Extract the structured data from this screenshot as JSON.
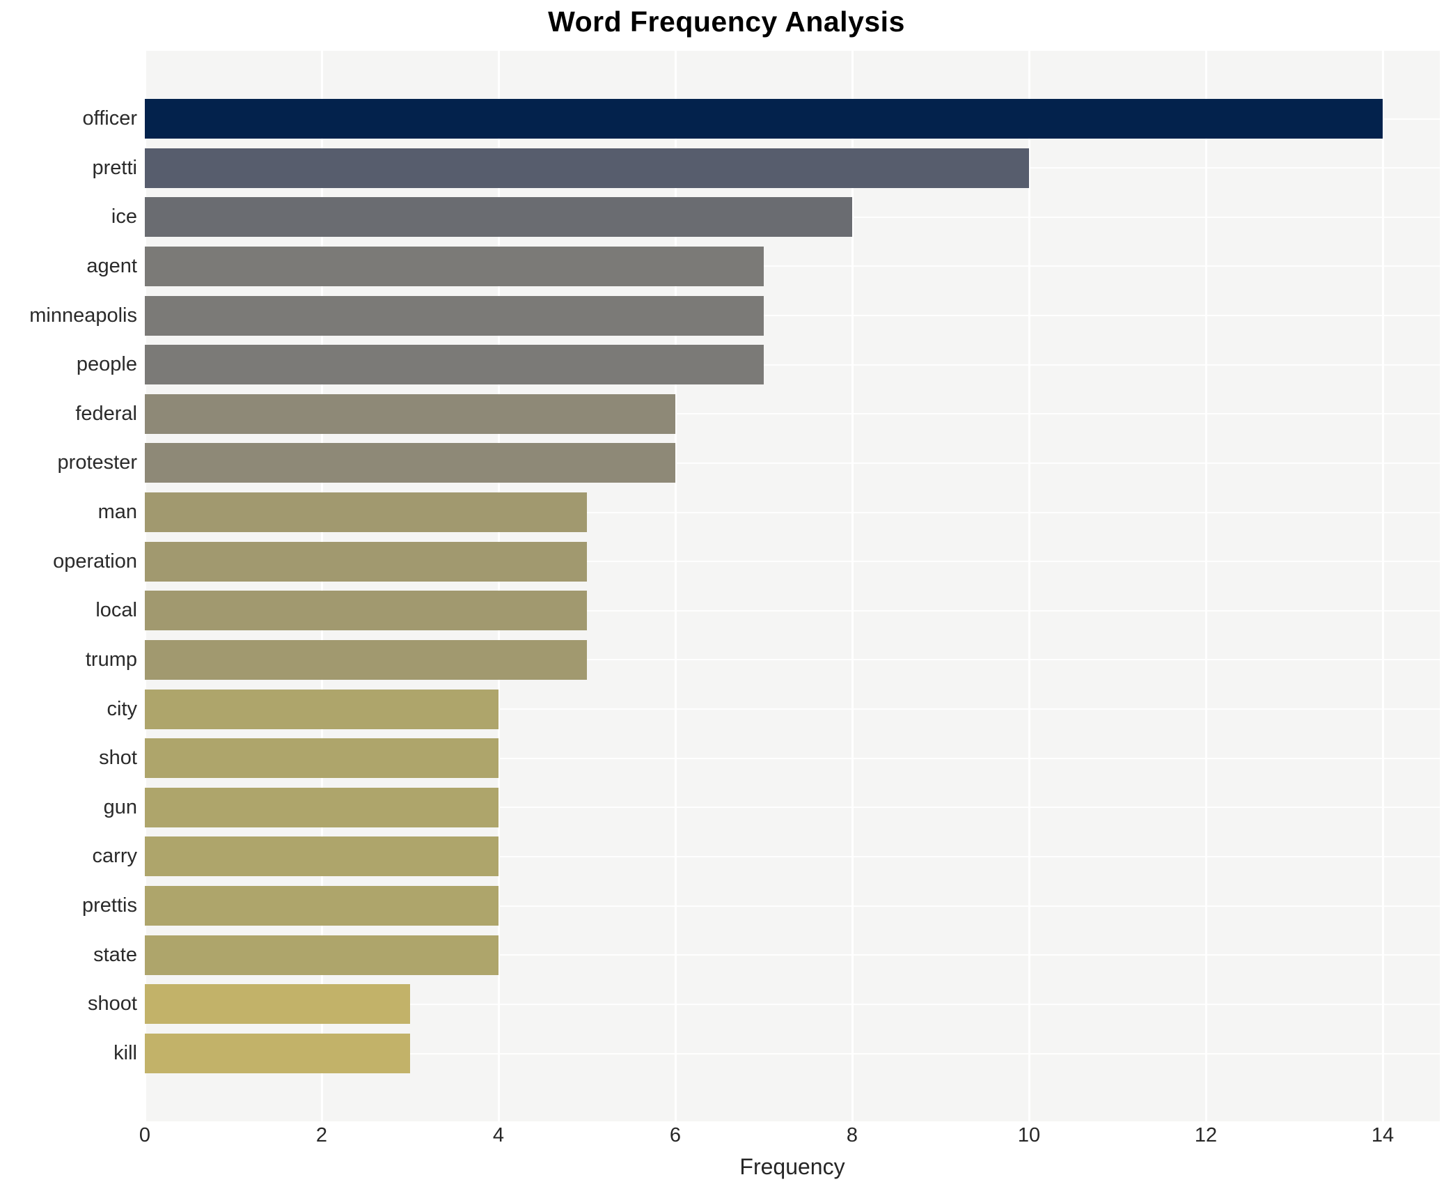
{
  "title": "Word Frequency Analysis",
  "chart_data": {
    "type": "bar",
    "orientation": "horizontal",
    "title": "Word Frequency Analysis",
    "xlabel": "Frequency",
    "ylabel": "",
    "categories": [
      "officer",
      "pretti",
      "ice",
      "agent",
      "minneapolis",
      "people",
      "federal",
      "protester",
      "man",
      "operation",
      "local",
      "trump",
      "city",
      "shot",
      "gun",
      "carry",
      "prettis",
      "state",
      "shoot",
      "kill"
    ],
    "values": [
      14,
      10,
      8,
      7,
      7,
      7,
      6,
      6,
      5,
      5,
      5,
      5,
      4,
      4,
      4,
      4,
      4,
      4,
      3,
      3
    ],
    "bar_colors": [
      "#03224c",
      "#575d6d",
      "#6a6c71",
      "#7b7a77",
      "#7b7a77",
      "#7b7a77",
      "#8e8977",
      "#8e8977",
      "#a1996f",
      "#a1996f",
      "#a1996f",
      "#a1996f",
      "#aea56b",
      "#aea56b",
      "#aea56b",
      "#aea56b",
      "#aea56b",
      "#aea56b",
      "#c2b269",
      "#c2b269"
    ],
    "xticks": [
      0,
      2,
      4,
      6,
      8,
      10,
      12,
      14
    ],
    "xlim": [
      0,
      14.65
    ],
    "grid": true,
    "legend_position": "none",
    "plot_bg": "#f5f5f4",
    "page_bg": "#ffffff",
    "gridline_color": "#ffffff",
    "text_color": "#262626"
  }
}
